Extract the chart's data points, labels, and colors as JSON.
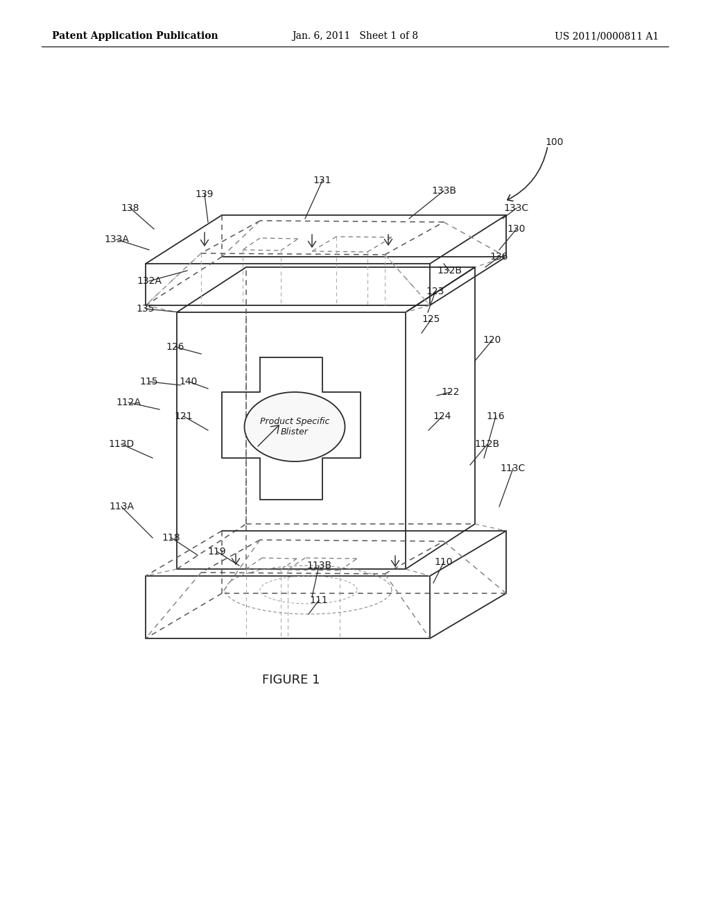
{
  "bg_color": "#ffffff",
  "header_left": "Patent Application Publication",
  "header_mid": "Jan. 6, 2011   Sheet 1 of 8",
  "header_right": "US 2011/0000811 A1",
  "figure_label": "FIGURE 1",
  "line_color": "#2a2a2a",
  "dashed_color": "#555555",
  "text_color": "#1a1a1a",
  "label_fontsize": 10,
  "header_fontsize": 10
}
